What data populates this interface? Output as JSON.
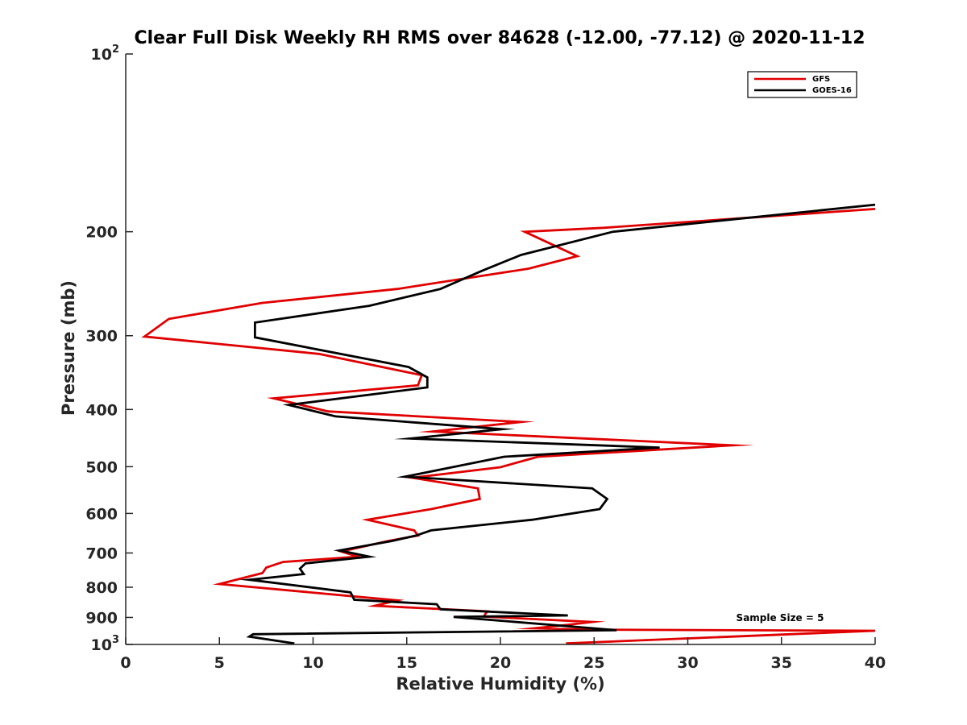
{
  "chart_data": {
    "type": "line",
    "title": "Clear Full Disk Weekly RH RMS over 84628 (-12.00, -77.12) @ 2020-11-12",
    "xlabel": "Relative Humidity (%)",
    "ylabel": "Pressure (mb)",
    "xlim": [
      0,
      40
    ],
    "ylim": [
      100,
      1000
    ],
    "yscale": "log",
    "y_reversed": true,
    "grid": false,
    "legend_position": "top-right",
    "x_ticks": [
      {
        "value": 0,
        "label": "0"
      },
      {
        "value": 5,
        "label": "5"
      },
      {
        "value": 10,
        "label": "10"
      },
      {
        "value": 15,
        "label": "15"
      },
      {
        "value": 20,
        "label": "20"
      },
      {
        "value": 25,
        "label": "25"
      },
      {
        "value": 30,
        "label": "30"
      },
      {
        "value": 35,
        "label": "35"
      },
      {
        "value": 40,
        "label": "40"
      }
    ],
    "y_ticks": [
      {
        "value": 100,
        "base": "10",
        "exp": "2"
      },
      {
        "value": 200,
        "label": "200"
      },
      {
        "value": 300,
        "label": "300"
      },
      {
        "value": 400,
        "label": "400"
      },
      {
        "value": 500,
        "label": "500"
      },
      {
        "value": 600,
        "label": "600"
      },
      {
        "value": 700,
        "label": "700"
      },
      {
        "value": 800,
        "label": "800"
      },
      {
        "value": 900,
        "label": "900"
      },
      {
        "value": 1000,
        "base": "10",
        "exp": "3"
      }
    ],
    "annotation": "Sample Size = 5",
    "series": [
      {
        "name": "GFS",
        "color": "#e00000",
        "points": [
          [
            40.0,
            183
          ],
          [
            25.5,
            197
          ],
          [
            21.3,
            200
          ],
          [
            24.1,
            220
          ],
          [
            21.5,
            231
          ],
          [
            14.5,
            250
          ],
          [
            7.3,
            264
          ],
          [
            2.3,
            281
          ],
          [
            1.0,
            301
          ],
          [
            10.3,
            322
          ],
          [
            15.8,
            350
          ],
          [
            15.6,
            364
          ],
          [
            7.9,
            383
          ],
          [
            10.8,
            403
          ],
          [
            21.1,
            420
          ],
          [
            16.4,
            436
          ],
          [
            32.4,
            460
          ],
          [
            22.0,
            481
          ],
          [
            20.0,
            501
          ],
          [
            15.3,
            522
          ],
          [
            18.8,
            544
          ],
          [
            18.9,
            567
          ],
          [
            16.3,
            590
          ],
          [
            12.9,
            615
          ],
          [
            15.4,
            641
          ],
          [
            15.6,
            654
          ],
          [
            14.0,
            668
          ],
          [
            11.5,
            696
          ],
          [
            12.4,
            710
          ],
          [
            8.4,
            725
          ],
          [
            7.5,
            741
          ],
          [
            7.3,
            757
          ],
          [
            5.0,
            790
          ],
          [
            14.5,
            842
          ],
          [
            13.3,
            860
          ],
          [
            19.3,
            879
          ],
          [
            19.1,
            897
          ],
          [
            24.9,
            916
          ],
          [
            23.5,
            927
          ],
          [
            21.8,
            939
          ],
          [
            25.3,
            944
          ],
          [
            40.0,
            948
          ],
          [
            23.5,
            996
          ]
        ]
      },
      {
        "name": "GOES-16",
        "color": "#000000",
        "points": [
          [
            40.0,
            180
          ],
          [
            26.0,
            200
          ],
          [
            21.1,
            219
          ],
          [
            19.0,
            233
          ],
          [
            16.8,
            250
          ],
          [
            13.0,
            267
          ],
          [
            6.9,
            285
          ],
          [
            6.9,
            302
          ],
          [
            15.1,
            339
          ],
          [
            16.1,
            353
          ],
          [
            16.1,
            367
          ],
          [
            8.7,
            393
          ],
          [
            11.2,
            411
          ],
          [
            20.1,
            432
          ],
          [
            15.2,
            448
          ],
          [
            28.5,
            464
          ],
          [
            20.2,
            481
          ],
          [
            14.9,
            520
          ],
          [
            24.9,
            544
          ],
          [
            25.7,
            567
          ],
          [
            25.3,
            590
          ],
          [
            21.7,
            615
          ],
          [
            16.3,
            641
          ],
          [
            15.5,
            654
          ],
          [
            14.2,
            668
          ],
          [
            11.4,
            693
          ],
          [
            13.0,
            710
          ],
          [
            9.6,
            729
          ],
          [
            9.3,
            744
          ],
          [
            9.5,
            760
          ],
          [
            6.6,
            777
          ],
          [
            12.0,
            816
          ],
          [
            12.2,
            840
          ],
          [
            16.6,
            855
          ],
          [
            16.8,
            872
          ],
          [
            23.6,
            893
          ],
          [
            17.5,
            898
          ],
          [
            26.2,
            946
          ],
          [
            6.8,
            961
          ],
          [
            6.6,
            970
          ],
          [
            9.0,
            996
          ]
        ]
      }
    ]
  }
}
